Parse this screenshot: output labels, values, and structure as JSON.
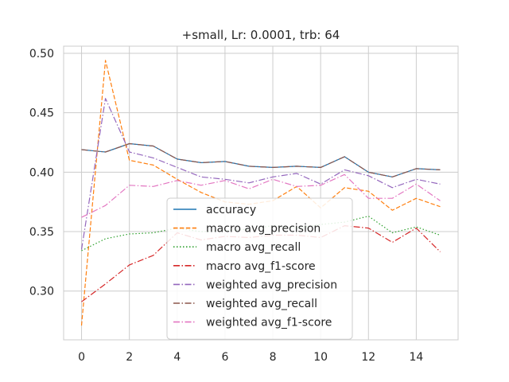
{
  "chart_data": {
    "type": "line",
    "title": "+small, Lr: 0.0001, trb: 64",
    "xlabel": "",
    "ylabel": "",
    "x": [
      0,
      1,
      2,
      3,
      4,
      5,
      6,
      7,
      8,
      9,
      10,
      11,
      12,
      13,
      14,
      15
    ],
    "xlim": [
      -0.75,
      15.75
    ],
    "ylim": [
      0.259,
      0.506
    ],
    "xticks": [
      0,
      2,
      4,
      6,
      8,
      10,
      12,
      14
    ],
    "yticks": [
      0.3,
      0.35,
      0.4,
      0.45,
      0.5
    ],
    "ytick_labels": [
      "0.30",
      "0.35",
      "0.40",
      "0.45",
      "0.50"
    ],
    "grid": true,
    "legend_position": "lower center",
    "series": [
      {
        "name": "accuracy",
        "color": "#1f77b4",
        "dash": "solid",
        "values": [
          0.419,
          0.417,
          0.424,
          0.422,
          0.411,
          0.408,
          0.409,
          0.405,
          0.404,
          0.405,
          0.404,
          0.413,
          0.4,
          0.396,
          0.403,
          0.402
        ]
      },
      {
        "name": "macro avg_precision",
        "color": "#ff7f0e",
        "dash": "dashed",
        "values": [
          0.271,
          0.494,
          0.41,
          0.406,
          0.394,
          0.383,
          0.375,
          0.373,
          0.376,
          0.388,
          0.37,
          0.387,
          0.384,
          0.368,
          0.378,
          0.371
        ]
      },
      {
        "name": "macro avg_recall",
        "color": "#2ca02c",
        "dash": "dotted",
        "values": [
          0.334,
          0.344,
          0.348,
          0.349,
          0.353,
          0.35,
          0.351,
          0.352,
          0.355,
          0.353,
          0.356,
          0.358,
          0.363,
          0.349,
          0.354,
          0.347
        ]
      },
      {
        "name": "macro avg_f1-score",
        "color": "#d62728",
        "dash": "dashdot",
        "values": [
          0.291,
          0.306,
          0.322,
          0.33,
          0.349,
          0.343,
          0.346,
          0.345,
          0.347,
          0.347,
          0.345,
          0.355,
          0.353,
          0.341,
          0.353,
          0.333
        ]
      },
      {
        "name": "weighted avg_precision",
        "color": "#9467bd",
        "dash": "dashdot",
        "values": [
          0.335,
          0.462,
          0.417,
          0.412,
          0.404,
          0.396,
          0.394,
          0.391,
          0.396,
          0.399,
          0.39,
          0.402,
          0.397,
          0.387,
          0.394,
          0.39
        ]
      },
      {
        "name": "weighted avg_recall",
        "color": "#8c564b",
        "dash": "dashdot",
        "values": [
          0.419,
          0.417,
          0.424,
          0.422,
          0.411,
          0.408,
          0.409,
          0.405,
          0.404,
          0.405,
          0.404,
          0.413,
          0.4,
          0.396,
          0.403,
          0.402
        ]
      },
      {
        "name": "weighted avg_f1-score",
        "color": "#e377c2",
        "dash": "dashdot",
        "values": [
          0.362,
          0.372,
          0.389,
          0.388,
          0.393,
          0.389,
          0.393,
          0.386,
          0.394,
          0.388,
          0.389,
          0.398,
          0.378,
          0.378,
          0.39,
          0.376
        ]
      }
    ]
  }
}
